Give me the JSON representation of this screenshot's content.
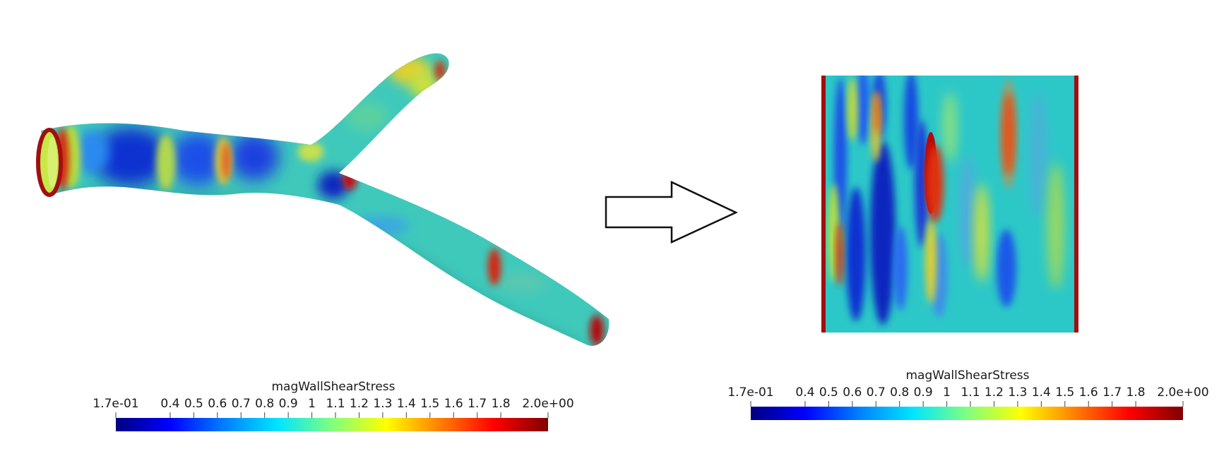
{
  "colormap": {
    "name": "jet",
    "stops": [
      "#00007f",
      "#0000ff",
      "#007fff",
      "#00e5ff",
      "#7fff7f",
      "#ffff00",
      "#ff7f00",
      "#ff0000",
      "#7f0000"
    ]
  },
  "left_panel": {
    "view": "3D vessel surface (bifurcation)",
    "colorbar": {
      "title": "magWallShearStress",
      "ticks": [
        "1.7e-01",
        "0.4",
        "0.5",
        "0.6",
        "0.7",
        "0.8",
        "0.9",
        "1",
        "1.1",
        "1.2",
        "1.3",
        "1.4",
        "1.5",
        "1.6",
        "1.7",
        "1.8",
        "2.0e+00"
      ]
    }
  },
  "arrow": {
    "direction": "right"
  },
  "right_panel": {
    "view": "2D flattened wall map",
    "colorbar": {
      "title": "magWallShearStress",
      "ticks": [
        "1.7e-01",
        "0.4",
        "0.5",
        "0.6",
        "0.7",
        "0.8",
        "0.9",
        "1",
        "1.1",
        "1.2",
        "1.3",
        "1.4",
        "1.5",
        "1.6",
        "1.7",
        "1.8",
        "2.0e+00"
      ]
    }
  }
}
